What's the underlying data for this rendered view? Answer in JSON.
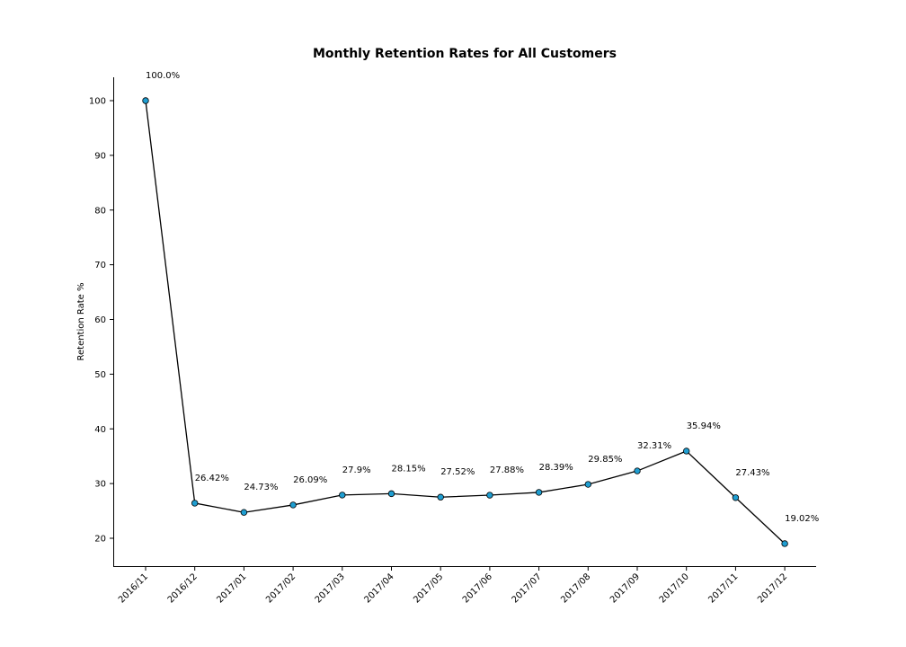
{
  "chart_data": {
    "type": "line",
    "title": "Monthly Retention Rates for All Customers",
    "xlabel": "",
    "ylabel": "Retention Rate %",
    "categories": [
      "2016/11",
      "2016/12",
      "2017/01",
      "2017/02",
      "2017/03",
      "2017/04",
      "2017/05",
      "2017/06",
      "2017/07",
      "2017/08",
      "2017/09",
      "2017/10",
      "2017/11",
      "2017/12"
    ],
    "values": [
      100.0,
      26.42,
      24.73,
      26.09,
      27.9,
      28.15,
      27.52,
      27.88,
      28.39,
      29.85,
      32.31,
      35.94,
      27.43,
      19.02
    ],
    "data_labels": [
      "100.0%",
      "26.42%",
      "24.73%",
      "26.09%",
      "27.9%",
      "28.15%",
      "27.52%",
      "27.88%",
      "28.39%",
      "29.85%",
      "32.31%",
      "35.94%",
      "27.43%",
      "19.02%"
    ],
    "yticks": [
      20,
      30,
      40,
      50,
      60,
      70,
      80,
      90,
      100
    ],
    "ylim": [
      15,
      104
    ],
    "grid": false,
    "colors": {
      "line": "#000000",
      "marker_fill": "#1f9ed1",
      "marker_edge": "#000000"
    }
  }
}
